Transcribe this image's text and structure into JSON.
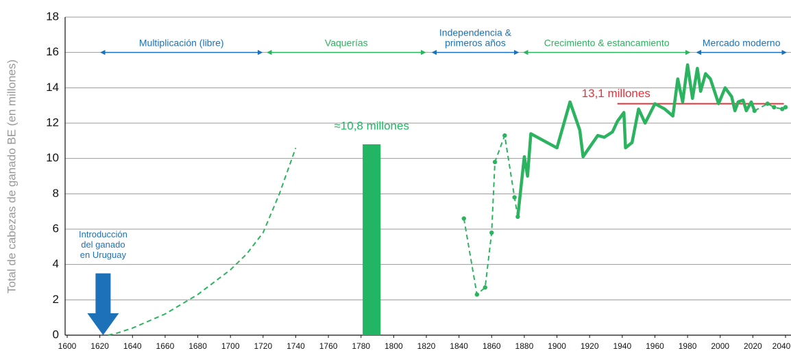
{
  "chart_data": {
    "type": "line",
    "ylabel": "Total de cabezas de ganado BE (en millones)",
    "xlim": [
      1600,
      2040
    ],
    "xticks": [
      1600,
      1620,
      1640,
      1660,
      1680,
      1700,
      1720,
      1740,
      1760,
      1780,
      1800,
      1820,
      1840,
      1860,
      1880,
      1900,
      1920,
      1940,
      1960,
      1980,
      2000,
      2020,
      2040
    ],
    "ylim": [
      0,
      18
    ],
    "yticks": [
      0,
      2,
      4,
      6,
      8,
      10,
      12,
      14,
      16,
      18
    ],
    "grid": true,
    "series": [
      {
        "color": "#2bb35f",
        "dashed": true,
        "markers": false,
        "x": [
          1625,
          1630,
          1640,
          1660,
          1680,
          1700,
          1710,
          1720,
          1730,
          1740
        ],
        "values": [
          0,
          0.1,
          0.4,
          1.2,
          2.3,
          3.7,
          4.6,
          5.8,
          8.0,
          10.6
        ]
      },
      {
        "color": "#2bb35f",
        "dashed": true,
        "markers": true,
        "x": [
          1843,
          1851,
          1856,
          1860,
          1862,
          1868,
          1874,
          1876
        ],
        "values": [
          6.6,
          2.3,
          2.7,
          5.8,
          9.8,
          11.3,
          7.8,
          6.7
        ]
      },
      {
        "color": "#2bb35f",
        "dashed": false,
        "markers": false,
        "x": [
          1876,
          1880,
          1882,
          1884,
          1900,
          1908,
          1914,
          1916,
          1925,
          1929,
          1934,
          1937,
          1941,
          1942,
          1946,
          1950,
          1954,
          1960,
          1966,
          1971,
          1974,
          1977,
          1980,
          1983,
          1986,
          1988,
          1991,
          1994,
          1999,
          2003,
          2007,
          2009,
          2011,
          2014,
          2016,
          2019,
          2021
        ],
        "values": [
          6.7,
          10.1,
          9.0,
          11.4,
          10.6,
          13.2,
          11.6,
          10.1,
          11.3,
          11.2,
          11.5,
          12.1,
          12.6,
          10.6,
          10.9,
          12.8,
          12.0,
          13.1,
          12.8,
          12.4,
          14.5,
          13.2,
          15.3,
          13.4,
          15.1,
          13.8,
          14.8,
          14.5,
          13.1,
          14.0,
          13.5,
          12.7,
          13.2,
          13.3,
          12.7,
          13.2,
          12.7
        ]
      },
      {
        "color": "#2bb35f",
        "dashed": true,
        "markers": true,
        "x": [
          2021,
          2029,
          2033,
          2038,
          2040
        ],
        "values": [
          12.7,
          13.1,
          12.9,
          12.8,
          12.9
        ]
      }
    ],
    "bars": [
      {
        "color": "#22b563",
        "x": [
          1781,
          1792
        ],
        "value": 10.8,
        "value_label": "≈10,8 millones"
      }
    ],
    "reference_line": {
      "color": "#e8303a",
      "value": 13.1,
      "x": [
        1937,
        2039
      ],
      "label": "13,1 millones"
    },
    "periods": [
      {
        "label": [
          "Multiplicación (libre)"
        ],
        "x": [
          1620,
          1720
        ],
        "color": "#1d71b8"
      },
      {
        "label": [
          "Vaquerías"
        ],
        "x": [
          1722,
          1820
        ],
        "color": "#2bb35f"
      },
      {
        "label": [
          "Independencia &",
          "primeros años"
        ],
        "x": [
          1823,
          1877
        ],
        "color": "#1d71b8"
      },
      {
        "label": [
          "Crecimiento & estancamiento"
        ],
        "x": [
          1879,
          1982
        ],
        "color": "#2bb35f"
      },
      {
        "label": [
          "Mercado moderno"
        ],
        "x": [
          1985,
          2041
        ],
        "color": "#1d71b8"
      }
    ],
    "annotations": [
      {
        "text": [
          "Introducción",
          "del ganado",
          "en Uruguay"
        ],
        "x": 1622,
        "y": [
          3.5,
          0
        ],
        "color": "#1d71b8"
      }
    ]
  }
}
